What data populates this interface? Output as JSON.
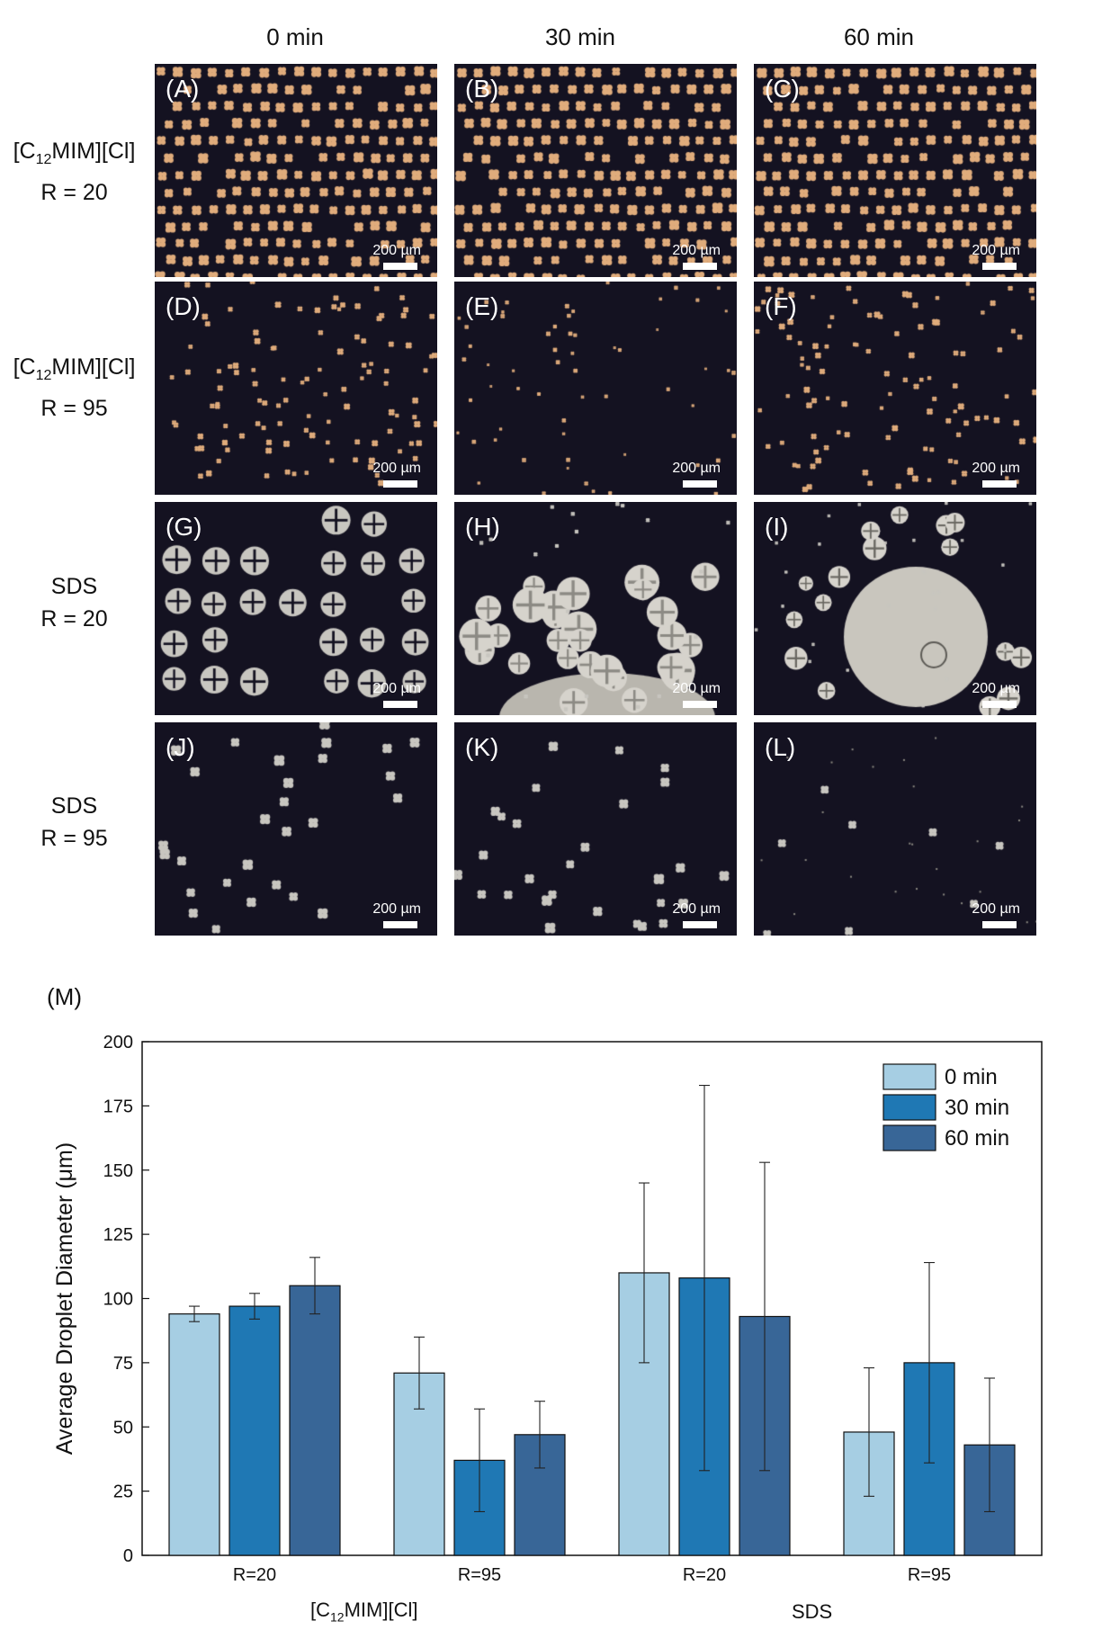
{
  "columns": [
    "0 min",
    "30 min",
    "60 min"
  ],
  "rows": [
    {
      "line1_pre": "[C",
      "line1_sub": "12",
      "line1_post": "MIM][Cl]",
      "line2": "R = 20"
    },
    {
      "line1_pre": "[C",
      "line1_sub": "12",
      "line1_post": "MIM][Cl]",
      "line2": "R = 95"
    },
    {
      "line1_pre": "SDS",
      "line1_sub": "",
      "line1_post": "",
      "line2": "R = 20"
    },
    {
      "line1_pre": "SDS",
      "line1_sub": "",
      "line1_post": "",
      "line2": "R = 95"
    }
  ],
  "panels": [
    {
      "label": "(A)",
      "scale": "200 µm"
    },
    {
      "label": "(B)",
      "scale": "200 µm"
    },
    {
      "label": "(C)",
      "scale": "200 µm"
    },
    {
      "label": "(D)",
      "scale": "200 µm"
    },
    {
      "label": "(E)",
      "scale": "200 µm"
    },
    {
      "label": "(F)",
      "scale": "200 µm"
    },
    {
      "label": "(G)",
      "scale": "200 µm"
    },
    {
      "label": "(H)",
      "scale": "200 µm"
    },
    {
      "label": "(I)",
      "scale": "200 µm"
    },
    {
      "label": "(J)",
      "scale": "200 µm"
    },
    {
      "label": "(K)",
      "scale": "200 µm"
    },
    {
      "label": "(L)",
      "scale": "200 µm"
    }
  ],
  "chart_label": "(M)",
  "chart_data": {
    "type": "bar",
    "ylabel": "Average Droplet Diameter (μm)",
    "ylim": [
      0,
      200
    ],
    "yticks": [
      0,
      25,
      50,
      75,
      100,
      125,
      150,
      175,
      200
    ],
    "categories": [
      "R=20",
      "R=95",
      "R=20",
      "R=95"
    ],
    "groups": [
      {
        "pre": "[C",
        "sub": "12",
        "post": "MIM][Cl]"
      },
      {
        "pre": "SDS",
        "sub": "",
        "post": ""
      }
    ],
    "legend_position": "top-right",
    "series": [
      {
        "name": "0 min",
        "color": "#a6cee3",
        "values": [
          94,
          71,
          110,
          48
        ],
        "err_low": [
          91,
          57,
          75,
          23
        ],
        "err_high": [
          97,
          85,
          145,
          73
        ]
      },
      {
        "name": "30 min",
        "color": "#1f78b4",
        "values": [
          97,
          37,
          108,
          75
        ],
        "err_low": [
          92,
          17,
          33,
          36
        ],
        "err_high": [
          102,
          57,
          183,
          114
        ]
      },
      {
        "name": "60 min",
        "color": "#386697",
        "values": [
          105,
          47,
          93,
          43
        ],
        "err_low": [
          94,
          34,
          33,
          17
        ],
        "err_high": [
          116,
          60,
          153,
          69
        ]
      }
    ]
  }
}
